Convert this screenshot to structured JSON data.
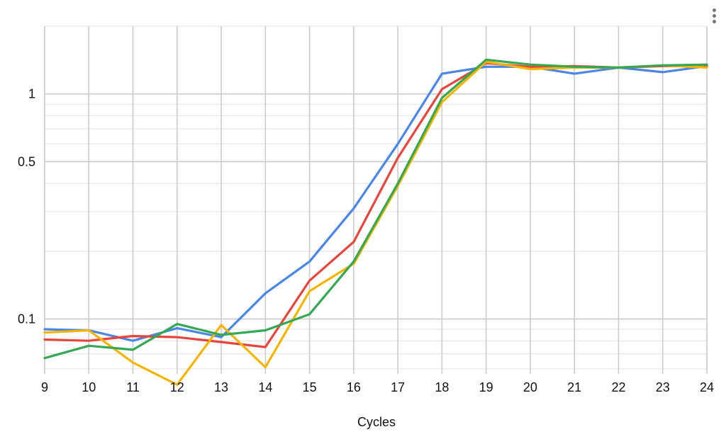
{
  "chart_data": {
    "type": "line",
    "title": "",
    "xlabel": "Cycles",
    "ylabel": "",
    "yscale": "log",
    "ylim": [
      0.057,
      2.0
    ],
    "xlim": [
      9,
      24
    ],
    "grid": true,
    "legend": "none",
    "x": [
      9,
      10,
      11,
      12,
      13,
      14,
      15,
      16,
      17,
      18,
      19,
      20,
      21,
      22,
      23,
      24
    ],
    "x_tick_labels": [
      "9",
      "10",
      "11",
      "12",
      "13",
      "14",
      "15",
      "16",
      "17",
      "18",
      "19",
      "20",
      "21",
      "22",
      "23",
      "24"
    ],
    "y_ticks": [
      0.1,
      0.5,
      1
    ],
    "y_tick_labels": [
      "0.1",
      "0.5",
      "1"
    ],
    "series": [
      {
        "color": "#4a86e8",
        "values": [
          0.09,
          0.089,
          0.08,
          0.091,
          0.083,
          0.13,
          0.18,
          0.31,
          0.6,
          1.23,
          1.32,
          1.32,
          1.23,
          1.31,
          1.25,
          1.33
        ]
      },
      {
        "color": "#e8453c",
        "values": [
          0.081,
          0.08,
          0.084,
          0.083,
          0.079,
          0.075,
          0.148,
          0.22,
          0.52,
          1.05,
          1.37,
          1.32,
          1.33,
          1.31,
          1.33,
          1.33
        ]
      },
      {
        "color": "#f4b400",
        "values": [
          0.087,
          0.089,
          0.064,
          0.051,
          0.094,
          0.061,
          0.133,
          0.176,
          0.39,
          0.92,
          1.39,
          1.29,
          1.31,
          1.31,
          1.34,
          1.31
        ]
      },
      {
        "color": "#34a853",
        "values": [
          0.067,
          0.076,
          0.073,
          0.095,
          0.085,
          0.089,
          0.105,
          0.18,
          0.4,
          0.96,
          1.42,
          1.35,
          1.32,
          1.31,
          1.34,
          1.35
        ]
      }
    ]
  },
  "menu": {
    "icon": "more-vert-icon"
  }
}
